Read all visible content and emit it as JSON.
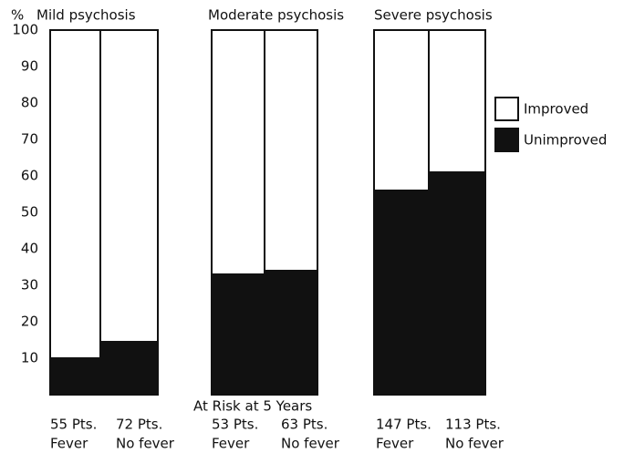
{
  "chart_data": {
    "type": "stacked_bar",
    "y_label": "%",
    "groups": [
      "Mild psychosis",
      "Moderate psychosis",
      "Severe psychosis"
    ],
    "patients": [
      "55 Pts.",
      "72 Pts.",
      "53 Pts.",
      "63 Pts.",
      "147 Pts.",
      "113 Pts."
    ],
    "categories": [
      "Fever",
      "No fever",
      "Fever",
      "No fever",
      "Fever",
      "No fever"
    ],
    "annotation": "At Risk at 5 Years",
    "series": [
      {
        "name": "Unimproved",
        "color": "#111111",
        "values": [
          10,
          14.5,
          33,
          34,
          56,
          61
        ]
      },
      {
        "name": "Improved",
        "color": "#ffffff",
        "values": [
          90,
          85.5,
          67,
          66,
          44,
          39
        ]
      }
    ],
    "ylim": [
      0,
      100
    ],
    "yticks": [
      10,
      20,
      30,
      40,
      50,
      60,
      70,
      80,
      90,
      100
    ],
    "grid": false,
    "legend": "right"
  }
}
